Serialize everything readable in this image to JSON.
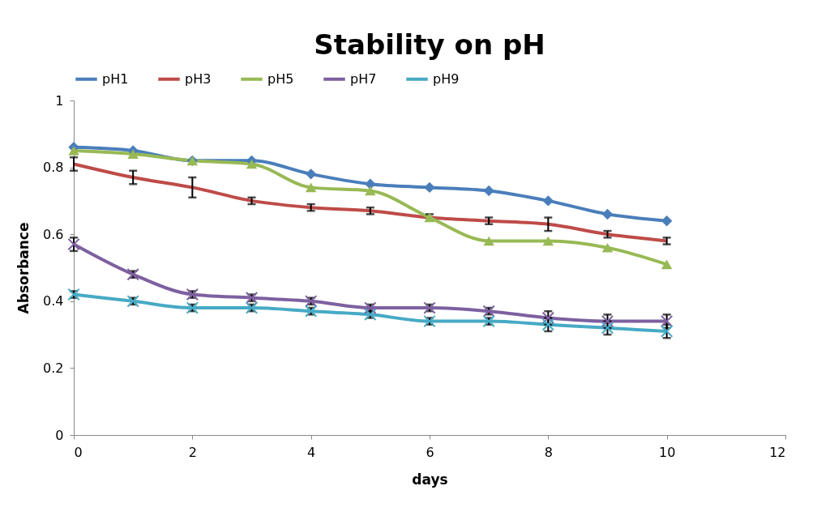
{
  "chart_data": {
    "type": "line",
    "title": "Stability on pH",
    "xlabel": "days",
    "ylabel": "Absorbance",
    "x": [
      0,
      1,
      2,
      3,
      4,
      5,
      6,
      7,
      8,
      9,
      10
    ],
    "xlim": [
      0,
      12
    ],
    "xticks": [
      0,
      2,
      4,
      6,
      8,
      10,
      12
    ],
    "ylim": [
      0,
      1
    ],
    "yticks": [
      0,
      0.2,
      0.4,
      0.6,
      0.8,
      1
    ],
    "grid": false,
    "legend": "top",
    "line_style": "solid",
    "series": [
      {
        "name": "pH1",
        "color": "#4a7ebb",
        "marker": "diamond",
        "values": [
          0.86,
          0.85,
          0.82,
          0.82,
          0.78,
          0.75,
          0.74,
          0.73,
          0.7,
          0.66,
          0.64
        ]
      },
      {
        "name": "pH3",
        "color": "#be4b48",
        "marker": "none",
        "values": [
          0.81,
          0.77,
          0.74,
          0.7,
          0.68,
          0.67,
          0.65,
          0.64,
          0.63,
          0.6,
          0.58
        ],
        "errors": [
          0.02,
          0.02,
          0.03,
          0.01,
          0.01,
          0.01,
          0.01,
          0.01,
          0.02,
          0.01,
          0.01
        ]
      },
      {
        "name": "pH5",
        "color": "#98b954",
        "marker": "triangle",
        "values": [
          0.85,
          0.84,
          0.82,
          0.81,
          0.74,
          0.73,
          0.65,
          0.58,
          0.58,
          0.56,
          0.51
        ]
      },
      {
        "name": "pH7",
        "color": "#7d60a0",
        "marker": "cross",
        "values": [
          0.57,
          0.48,
          0.42,
          0.41,
          0.4,
          0.38,
          0.38,
          0.37,
          0.35,
          0.34,
          0.34
        ],
        "errors": [
          0.02,
          0.01,
          0.01,
          0.01,
          0.01,
          0.01,
          0.01,
          0.01,
          0.02,
          0.02,
          0.02
        ]
      },
      {
        "name": "pH9",
        "color": "#46aac5",
        "marker": "cross",
        "values": [
          0.42,
          0.4,
          0.38,
          0.38,
          0.37,
          0.36,
          0.34,
          0.34,
          0.33,
          0.32,
          0.31
        ],
        "errors": [
          0.01,
          0.01,
          0.01,
          0.01,
          0.01,
          0.01,
          0.01,
          0.01,
          0.02,
          0.02,
          0.02
        ]
      }
    ]
  }
}
